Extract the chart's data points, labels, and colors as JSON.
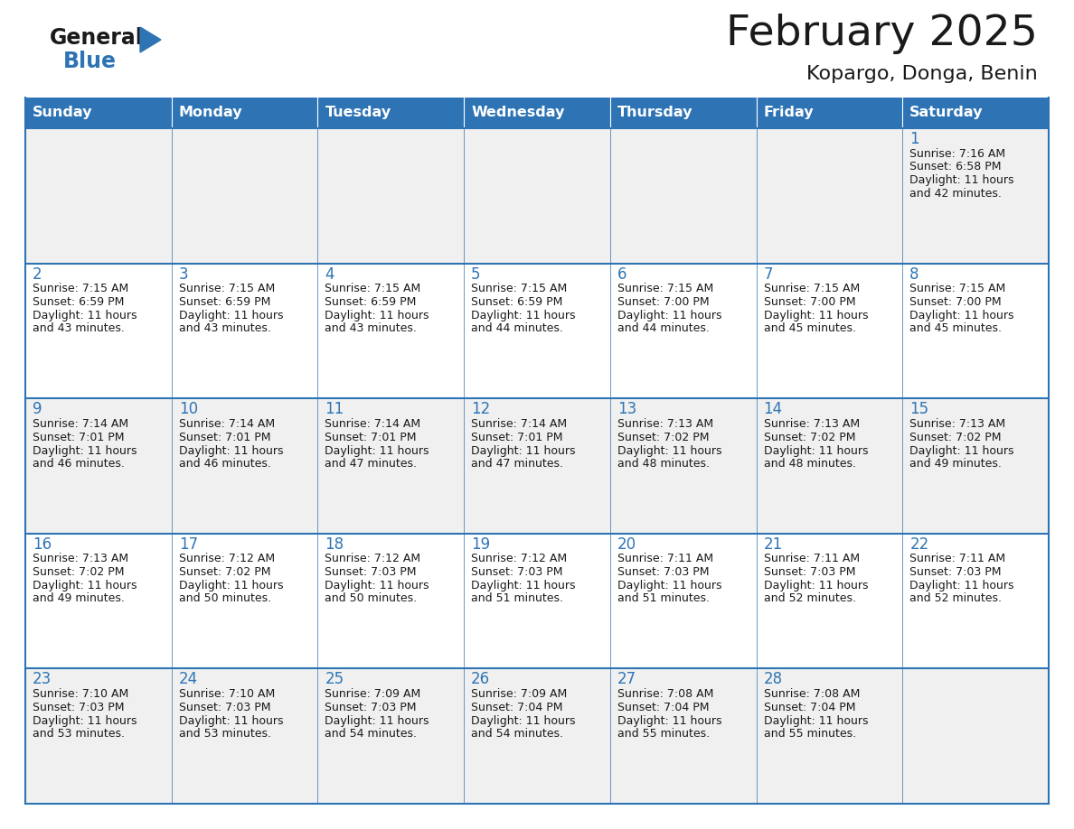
{
  "title": "February 2025",
  "subtitle": "Kopargo, Donga, Benin",
  "header_bg": "#2E74B5",
  "header_text": "#FFFFFF",
  "cell_bg_white": "#FFFFFF",
  "cell_bg_gray": "#F0F0F0",
  "border_color": "#2E74B5",
  "title_color": "#1A1A1A",
  "subtitle_color": "#1A1A1A",
  "day_number_color": "#2E74B5",
  "cell_text_color": "#1A1A1A",
  "days_of_week": [
    "Sunday",
    "Monday",
    "Tuesday",
    "Wednesday",
    "Thursday",
    "Friday",
    "Saturday"
  ],
  "weeks": [
    [
      null,
      null,
      null,
      null,
      null,
      null,
      1
    ],
    [
      2,
      3,
      4,
      5,
      6,
      7,
      8
    ],
    [
      9,
      10,
      11,
      12,
      13,
      14,
      15
    ],
    [
      16,
      17,
      18,
      19,
      20,
      21,
      22
    ],
    [
      23,
      24,
      25,
      26,
      27,
      28,
      null
    ]
  ],
  "cell_data": {
    "1": {
      "sunrise": "7:16 AM",
      "sunset": "6:58 PM",
      "daylight": "11 hours and 42 minutes."
    },
    "2": {
      "sunrise": "7:15 AM",
      "sunset": "6:59 PM",
      "daylight": "11 hours and 43 minutes."
    },
    "3": {
      "sunrise": "7:15 AM",
      "sunset": "6:59 PM",
      "daylight": "11 hours and 43 minutes."
    },
    "4": {
      "sunrise": "7:15 AM",
      "sunset": "6:59 PM",
      "daylight": "11 hours and 43 minutes."
    },
    "5": {
      "sunrise": "7:15 AM",
      "sunset": "6:59 PM",
      "daylight": "11 hours and 44 minutes."
    },
    "6": {
      "sunrise": "7:15 AM",
      "sunset": "7:00 PM",
      "daylight": "11 hours and 44 minutes."
    },
    "7": {
      "sunrise": "7:15 AM",
      "sunset": "7:00 PM",
      "daylight": "11 hours and 45 minutes."
    },
    "8": {
      "sunrise": "7:15 AM",
      "sunset": "7:00 PM",
      "daylight": "11 hours and 45 minutes."
    },
    "9": {
      "sunrise": "7:14 AM",
      "sunset": "7:01 PM",
      "daylight": "11 hours and 46 minutes."
    },
    "10": {
      "sunrise": "7:14 AM",
      "sunset": "7:01 PM",
      "daylight": "11 hours and 46 minutes."
    },
    "11": {
      "sunrise": "7:14 AM",
      "sunset": "7:01 PM",
      "daylight": "11 hours and 47 minutes."
    },
    "12": {
      "sunrise": "7:14 AM",
      "sunset": "7:01 PM",
      "daylight": "11 hours and 47 minutes."
    },
    "13": {
      "sunrise": "7:13 AM",
      "sunset": "7:02 PM",
      "daylight": "11 hours and 48 minutes."
    },
    "14": {
      "sunrise": "7:13 AM",
      "sunset": "7:02 PM",
      "daylight": "11 hours and 48 minutes."
    },
    "15": {
      "sunrise": "7:13 AM",
      "sunset": "7:02 PM",
      "daylight": "11 hours and 49 minutes."
    },
    "16": {
      "sunrise": "7:13 AM",
      "sunset": "7:02 PM",
      "daylight": "11 hours and 49 minutes."
    },
    "17": {
      "sunrise": "7:12 AM",
      "sunset": "7:02 PM",
      "daylight": "11 hours and 50 minutes."
    },
    "18": {
      "sunrise": "7:12 AM",
      "sunset": "7:03 PM",
      "daylight": "11 hours and 50 minutes."
    },
    "19": {
      "sunrise": "7:12 AM",
      "sunset": "7:03 PM",
      "daylight": "11 hours and 51 minutes."
    },
    "20": {
      "sunrise": "7:11 AM",
      "sunset": "7:03 PM",
      "daylight": "11 hours and 51 minutes."
    },
    "21": {
      "sunrise": "7:11 AM",
      "sunset": "7:03 PM",
      "daylight": "11 hours and 52 minutes."
    },
    "22": {
      "sunrise": "7:11 AM",
      "sunset": "7:03 PM",
      "daylight": "11 hours and 52 minutes."
    },
    "23": {
      "sunrise": "7:10 AM",
      "sunset": "7:03 PM",
      "daylight": "11 hours and 53 minutes."
    },
    "24": {
      "sunrise": "7:10 AM",
      "sunset": "7:03 PM",
      "daylight": "11 hours and 53 minutes."
    },
    "25": {
      "sunrise": "7:09 AM",
      "sunset": "7:03 PM",
      "daylight": "11 hours and 54 minutes."
    },
    "26": {
      "sunrise": "7:09 AM",
      "sunset": "7:04 PM",
      "daylight": "11 hours and 54 minutes."
    },
    "27": {
      "sunrise": "7:08 AM",
      "sunset": "7:04 PM",
      "daylight": "11 hours and 55 minutes."
    },
    "28": {
      "sunrise": "7:08 AM",
      "sunset": "7:04 PM",
      "daylight": "11 hours and 55 minutes."
    }
  },
  "logo_general_color": "#1A1A1A",
  "logo_blue_color": "#2E74B5",
  "figsize": [
    11.88,
    9.18
  ],
  "dpi": 100
}
